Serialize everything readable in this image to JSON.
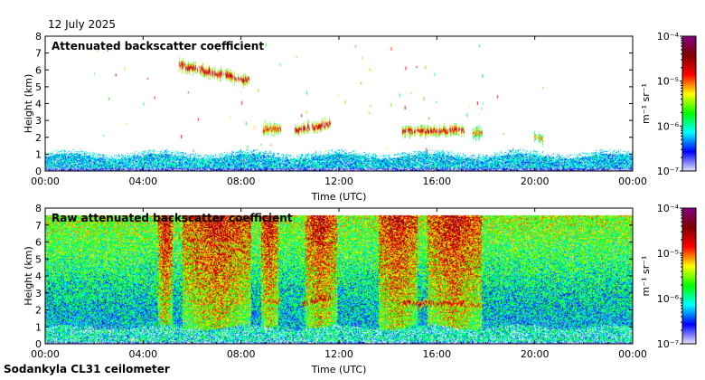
{
  "date": "12 July 2025",
  "footer": "Sodankyla CL31 ceilometer",
  "colors": {
    "colormap": [
      "#e6e6fa",
      "#0000ff",
      "#00ffff",
      "#00ff00",
      "#ffff00",
      "#ff0000",
      "#800000",
      "#800080"
    ]
  },
  "chart_data": [
    {
      "type": "heatmap",
      "title": "Attenuated backscatter coefficient",
      "xlabel": "Time (UTC)",
      "ylabel": "Height (km)",
      "xlim": [
        0,
        24
      ],
      "ylim": [
        0,
        8
      ],
      "x_ticks": [
        "00:00",
        "04:00",
        "08:00",
        "12:00",
        "16:00",
        "20:00",
        "00:00"
      ],
      "y_ticks": [
        "0",
        "1",
        "2",
        "3",
        "4",
        "5",
        "6",
        "7",
        "8"
      ],
      "colorbar": {
        "unit": "m⁻¹ sr⁻¹",
        "scale": "log",
        "range": [
          1e-07,
          0.0001
        ],
        "ticks": [
          {
            "value": -4,
            "label": "10⁻⁴"
          },
          {
            "value": -5,
            "label": "10⁻⁵"
          },
          {
            "value": -6,
            "label": "10⁻⁶"
          },
          {
            "value": -7,
            "label": "10⁻⁷"
          }
        ]
      },
      "noise": "low",
      "boundary_layer_top_km": 0.9,
      "cloud_layers": [
        {
          "t_start": 5.5,
          "t_end": 8.3,
          "h_start": 6.3,
          "h_end": 5.4,
          "log_level": -4.4
        },
        {
          "t_start": 8.9,
          "t_end": 9.6,
          "h_start": 2.5,
          "h_end": 2.5,
          "log_level": -4.6
        },
        {
          "t_start": 10.2,
          "t_end": 11.6,
          "h_start": 2.4,
          "h_end": 2.8,
          "log_level": -4.4
        },
        {
          "t_start": 14.6,
          "t_end": 17.1,
          "h_start": 2.4,
          "h_end": 2.4,
          "log_level": -4.5
        },
        {
          "t_start": 17.4,
          "t_end": 17.8,
          "h_start": 2.3,
          "h_end": 2.3,
          "log_level": -4.8
        },
        {
          "t_start": 20.0,
          "t_end": 20.3,
          "h_start": 2.05,
          "h_end": 1.9,
          "log_level": -5.0
        }
      ]
    },
    {
      "type": "heatmap",
      "title": "Raw attenuated backscatter coefficient",
      "xlabel": "Time (UTC)",
      "ylabel": "Height (km)",
      "xlim": [
        0,
        24
      ],
      "ylim": [
        0,
        8
      ],
      "x_ticks": [
        "00:00",
        "04:00",
        "08:00",
        "12:00",
        "16:00",
        "20:00",
        "00:00"
      ],
      "y_ticks": [
        "0",
        "1",
        "2",
        "3",
        "4",
        "5",
        "6",
        "7",
        "8"
      ],
      "colorbar": {
        "unit": "m⁻¹ sr⁻¹",
        "scale": "log",
        "range": [
          1e-07,
          0.0001
        ],
        "ticks": [
          {
            "value": -4,
            "label": "10⁻⁴"
          },
          {
            "value": -5,
            "label": "10⁻⁵"
          },
          {
            "value": -6,
            "label": "10⁻⁶"
          },
          {
            "value": -7,
            "label": "10⁻⁷"
          }
        ]
      },
      "noise": "high",
      "data_top_km": 7.6,
      "boundary_layer_top_km": 1.0,
      "noisy_bands": [
        {
          "t_start": 4.6,
          "t_end": 5.2
        },
        {
          "t_start": 5.6,
          "t_end": 8.4
        },
        {
          "t_start": 8.8,
          "t_end": 9.5
        },
        {
          "t_start": 10.6,
          "t_end": 11.9
        },
        {
          "t_start": 13.6,
          "t_end": 15.2
        },
        {
          "t_start": 15.6,
          "t_end": 17.8
        }
      ],
      "cloud_layers": [
        {
          "t_start": 5.5,
          "t_end": 8.3,
          "h_start": 6.3,
          "h_end": 5.4,
          "log_level": -4.5
        },
        {
          "t_start": 8.9,
          "t_end": 9.6,
          "h_start": 2.5,
          "h_end": 2.5,
          "log_level": -4.7
        },
        {
          "t_start": 10.5,
          "t_end": 11.6,
          "h_start": 2.4,
          "h_end": 2.8,
          "log_level": -4.4
        },
        {
          "t_start": 14.6,
          "t_end": 17.1,
          "h_start": 2.4,
          "h_end": 2.4,
          "log_level": -4.5
        },
        {
          "t_start": 17.4,
          "t_end": 17.8,
          "h_start": 2.3,
          "h_end": 2.3,
          "log_level": -4.7
        }
      ]
    }
  ]
}
